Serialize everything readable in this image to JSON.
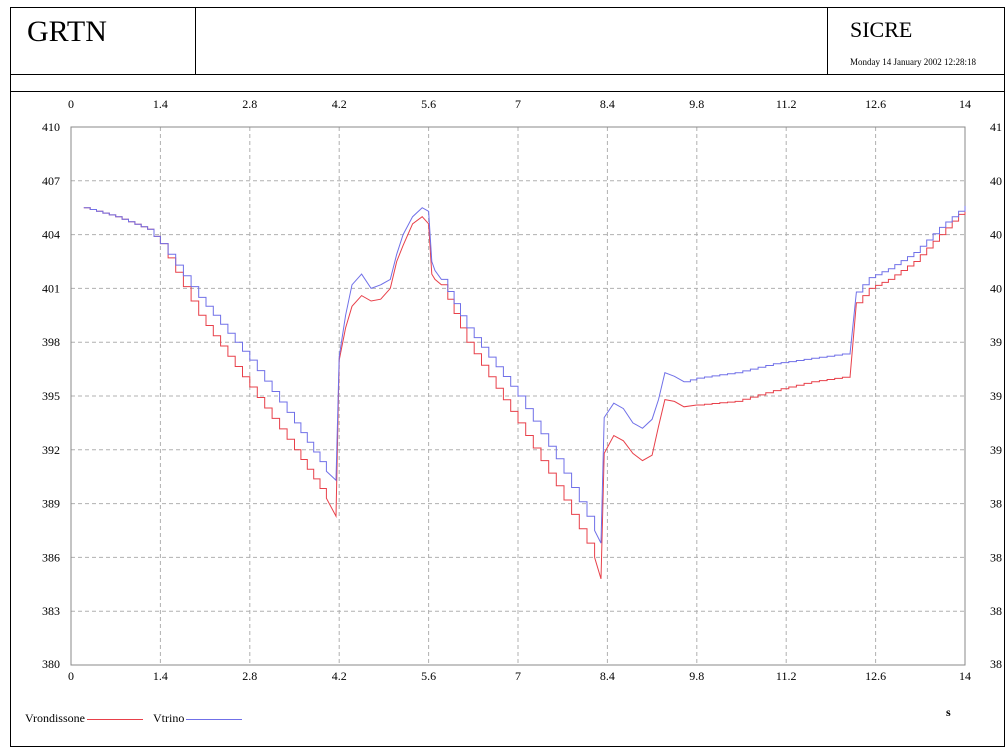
{
  "header": {
    "app_title": "GRTN",
    "system_title": "SICRE",
    "timestamp": "Monday 14 January 2002 12:28:18"
  },
  "chart_data": {
    "type": "line",
    "xlabel": "s",
    "ylabel": "",
    "xlim": [
      0,
      14
    ],
    "ylim": [
      380,
      410
    ],
    "xticks": [
      0,
      1.4,
      2.8,
      4.2,
      5.6,
      7,
      8.4,
      9.8,
      11.2,
      12.6,
      14
    ],
    "xtick_labels": [
      "0",
      "1.4",
      "2.8",
      "4.2",
      "5.6",
      "7",
      "8.4",
      "9.8",
      "11.2",
      "12.6",
      "14"
    ],
    "yticks": [
      380,
      383,
      386,
      389,
      392,
      395,
      398,
      401,
      404,
      407,
      410
    ],
    "ytick_labels": [
      "380",
      "383",
      "386",
      "389",
      "392",
      "395",
      "398",
      "401",
      "404",
      "407",
      "410"
    ],
    "right_ytick_labels": [
      "38",
      "38",
      "38",
      "38",
      "39",
      "39",
      "39",
      "40",
      "40",
      "40",
      "41"
    ],
    "grid": true,
    "legend_position": "bottom-left",
    "series": [
      {
        "name": "Vrondissone",
        "color": "#e8404a",
        "x": [
          0.2,
          0.7,
          1.2,
          1.4,
          2.0,
          2.8,
          3.5,
          4.0,
          4.15,
          4.2,
          4.3,
          4.4,
          4.55,
          4.7,
          4.85,
          5.0,
          5.1,
          5.2,
          5.35,
          5.5,
          5.6,
          5.65,
          5.7,
          5.8,
          6.2,
          7.0,
          7.6,
          8.2,
          8.3,
          8.35,
          8.5,
          8.65,
          8.8,
          8.95,
          9.1,
          9.2,
          9.3,
          9.45,
          9.6,
          9.8,
          10.4,
          11.0,
          11.6,
          12.2,
          12.3,
          12.5,
          12.8,
          13.2,
          13.6,
          14.0
        ],
        "y": [
          405.5,
          405.0,
          404.3,
          403.5,
          399.5,
          395.5,
          392.0,
          389.3,
          388.3,
          397.0,
          398.8,
          400.0,
          400.6,
          400.3,
          400.4,
          401.0,
          402.5,
          403.4,
          404.6,
          405.0,
          404.6,
          401.8,
          401.5,
          401.2,
          398.0,
          393.5,
          390.0,
          386.0,
          384.8,
          391.8,
          392.8,
          392.5,
          391.8,
          391.4,
          391.7,
          393.3,
          394.8,
          394.7,
          394.4,
          394.5,
          394.7,
          395.3,
          395.8,
          396.1,
          400.2,
          401.0,
          401.5,
          402.5,
          404.0,
          405.5
        ]
      },
      {
        "name": "Vtrino",
        "color": "#7070e8",
        "x": [
          0.2,
          0.7,
          1.2,
          1.4,
          2.0,
          2.8,
          3.5,
          4.0,
          4.15,
          4.2,
          4.3,
          4.4,
          4.55,
          4.7,
          4.85,
          5.0,
          5.1,
          5.2,
          5.35,
          5.5,
          5.6,
          5.65,
          5.7,
          5.8,
          6.2,
          7.0,
          7.6,
          8.2,
          8.3,
          8.35,
          8.5,
          8.65,
          8.8,
          8.95,
          9.1,
          9.2,
          9.3,
          9.45,
          9.6,
          9.8,
          10.4,
          11.0,
          11.6,
          12.2,
          12.3,
          12.5,
          12.8,
          13.2,
          13.6,
          14.0
        ],
        "y": [
          405.5,
          405.0,
          404.3,
          403.5,
          400.5,
          397.0,
          393.5,
          390.8,
          390.3,
          397.2,
          399.5,
          401.2,
          401.8,
          401.0,
          401.2,
          401.5,
          402.9,
          404.0,
          405.0,
          405.5,
          405.3,
          402.5,
          402.0,
          401.5,
          398.8,
          395.0,
          391.5,
          387.5,
          386.8,
          393.8,
          394.6,
          394.3,
          393.5,
          393.2,
          393.7,
          394.8,
          396.3,
          396.1,
          395.8,
          396.0,
          396.3,
          396.8,
          397.1,
          397.4,
          400.8,
          401.6,
          402.1,
          403.0,
          404.4,
          405.6
        ]
      }
    ]
  }
}
